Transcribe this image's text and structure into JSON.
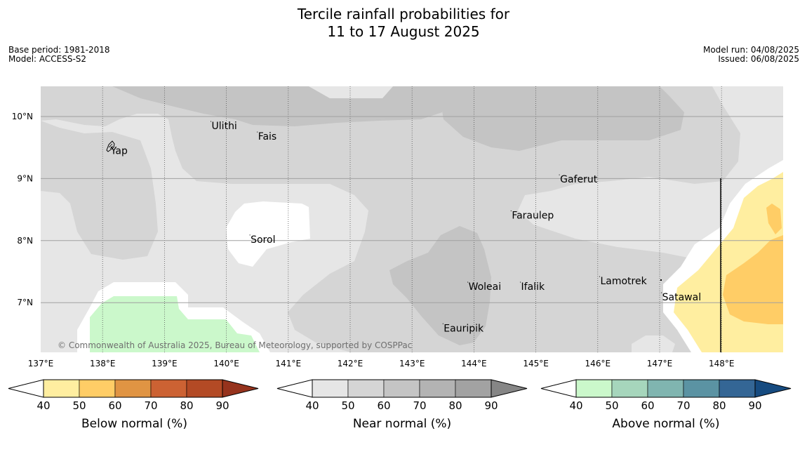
{
  "title": {
    "line1": "Tercile rainfall probabilities for",
    "line2": "11 to 17 August 2025"
  },
  "meta_left": {
    "base_period": "Base period: 1981-2018",
    "model": "Model: ACCESS-S2"
  },
  "meta_right": {
    "model_run": "Model run: 04/08/2025",
    "issued": "Issued: 06/08/2025"
  },
  "map": {
    "lon_ticks": [
      "137°E",
      "138°E",
      "139°E",
      "140°E",
      "141°E",
      "142°E",
      "143°E",
      "144°E",
      "145°E",
      "146°E",
      "147°E",
      "148°E"
    ],
    "lat_ticks": [
      "10°N",
      "9°N",
      "8°N",
      "7°N"
    ],
    "places": [
      {
        "name": "Ulithi",
        "lon": 139.75,
        "lat": 9.92
      },
      {
        "name": "Fais",
        "lon": 140.5,
        "lat": 9.75
      },
      {
        "name": "Yap",
        "lon": 138.12,
        "lat": 9.52
      },
      {
        "name": "Gaferut",
        "lon": 145.38,
        "lat": 9.06
      },
      {
        "name": "Faraulep",
        "lon": 144.6,
        "lat": 8.48
      },
      {
        "name": "Sorol",
        "lon": 140.38,
        "lat": 8.09
      },
      {
        "name": "Lamotrek",
        "lon": 146.03,
        "lat": 7.42
      },
      {
        "name": "Woleai",
        "lon": 143.9,
        "lat": 7.33
      },
      {
        "name": "Ifalik",
        "lon": 144.75,
        "lat": 7.33
      },
      {
        "name": "Satawal",
        "lon": 147.03,
        "lat": 7.16
      },
      {
        "name": "Eauripik",
        "lon": 143.5,
        "lat": 6.66
      }
    ],
    "copyright": "© Commonwealth of Australia 2025, Bureau of Meteorology, supported by COSPPac"
  },
  "colorbars": [
    {
      "label": "Below normal (%)",
      "ticks": [
        "40",
        "50",
        "60",
        "70",
        "80",
        "90"
      ],
      "colors": [
        "#ffeea0",
        "#ffcd66",
        "#e09443",
        "#cc6233",
        "#b34a25",
        "#96331d"
      ]
    },
    {
      "label": "Near normal (%)",
      "ticks": [
        "40",
        "50",
        "60",
        "70",
        "80",
        "90"
      ],
      "colors": [
        "#e6e6e6",
        "#d5d5d5",
        "#c4c4c4",
        "#b3b3b3",
        "#a2a2a2",
        "#868686"
      ]
    },
    {
      "label": "Above normal (%)",
      "ticks": [
        "40",
        "50",
        "60",
        "70",
        "80",
        "90"
      ],
      "colors": [
        "#cbf8cb",
        "#a6d6bc",
        "#80b5b0",
        "#5b93a3",
        "#346695",
        "#164b80"
      ]
    }
  ]
}
